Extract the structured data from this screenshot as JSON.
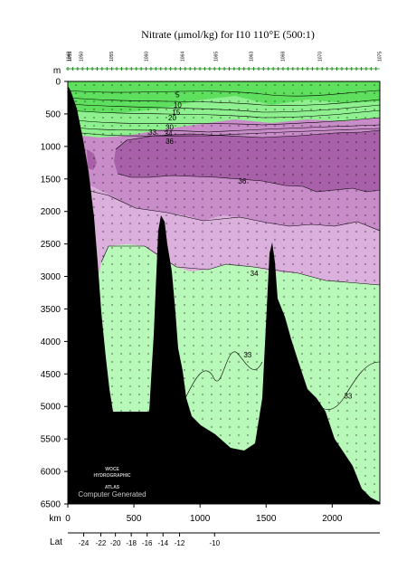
{
  "chart_data": {
    "type": "area",
    "title": "Nitrate (μmol/kg) for I10 110°E (500:1)",
    "depth_axis_label": "m",
    "distance_axis_label": "km",
    "lat_axis_label": "Lat",
    "depth_ticks": [
      0,
      500,
      1000,
      1500,
      2000,
      2500,
      3000,
      3500,
      4000,
      4500,
      5000,
      5500,
      6000,
      6500
    ],
    "depth_range": [
      0,
      6500
    ],
    "distance_ticks": [
      0,
      500,
      1000,
      1500,
      2000
    ],
    "distance_range": [
      0,
      2360
    ],
    "lat_ticks": [
      {
        "km": 120,
        "label": "-24"
      },
      {
        "km": 250,
        "label": "-22"
      },
      {
        "km": 360,
        "label": "-20"
      },
      {
        "km": 480,
        "label": "-18"
      },
      {
        "km": 600,
        "label": "-16"
      },
      {
        "km": 720,
        "label": "-14"
      },
      {
        "km": 845,
        "label": "-12"
      },
      {
        "km": 1110,
        "label": "-10"
      }
    ],
    "station_labels": [
      {
        "km": 5,
        "label": "1048"
      },
      {
        "km": 15,
        "label": "1055"
      },
      {
        "km": 100,
        "label": "1050"
      },
      {
        "km": 330,
        "label": "1055"
      },
      {
        "km": 590,
        "label": "1060"
      },
      {
        "km": 865,
        "label": "1064"
      },
      {
        "km": 1120,
        "label": "1065"
      },
      {
        "km": 1385,
        "label": "1063"
      },
      {
        "km": 1625,
        "label": "1068"
      },
      {
        "km": 1905,
        "label": "1070"
      },
      {
        "km": 2355,
        "label": "1075"
      }
    ],
    "contour_labels": [
      {
        "value": "5",
        "km": 830,
        "depth": 200
      },
      {
        "value": "10",
        "km": 830,
        "depth": 360
      },
      {
        "value": "15",
        "km": 820,
        "depth": 470
      },
      {
        "value": "20",
        "km": 790,
        "depth": 560
      },
      {
        "value": "30",
        "km": 770,
        "depth": 700
      },
      {
        "value": "33",
        "km": 640,
        "depth": 780
      },
      {
        "value": "34",
        "km": 760,
        "depth": 800
      },
      {
        "value": "36",
        "km": 770,
        "depth": 920
      },
      {
        "value": "36",
        "km": 1320,
        "depth": 1530
      },
      {
        "value": "34",
        "km": 1410,
        "depth": 2950
      },
      {
        "value": "33",
        "km": 1360,
        "depth": 4200
      },
      {
        "value": "33",
        "km": 2120,
        "depth": 4840
      }
    ],
    "colors": {
      "surface_green": "#5ee05e",
      "green_mid": "#8ef08e",
      "green_light": "#b8f8b8",
      "purple_light": "#dcb0dc",
      "purple_mid": "#c88cc8",
      "purple_dark": "#a860a8",
      "bathymetry": "#000000"
    }
  },
  "watermark": {
    "lines": [
      "WOCE",
      "HYDROGRAPHIC",
      "ATLAS"
    ],
    "caption": "Computer Generated"
  }
}
